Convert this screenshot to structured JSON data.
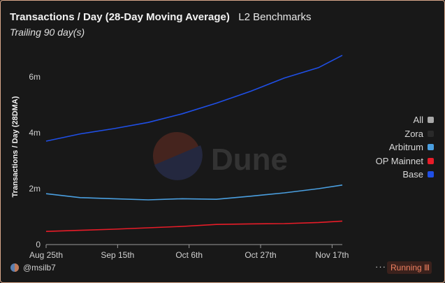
{
  "header": {
    "title": "Transactions / Day (28-Day Moving Average)",
    "tag": "L2 Benchmarks",
    "period": "Trailing 90 day(s)"
  },
  "watermark": {
    "text": "Dune"
  },
  "legend": {
    "items": [
      {
        "label": "All",
        "color": "#a8a8a8"
      },
      {
        "label": "Zora",
        "color": "#2a2a2a"
      },
      {
        "label": "Arbitrum",
        "color": "#4a9fe0"
      },
      {
        "label": "OP Mainnet",
        "color": "#e81c28"
      },
      {
        "label": "Base",
        "color": "#1f4fe6"
      }
    ]
  },
  "footer": {
    "user": "@msilb7",
    "more": "···",
    "status": "Running",
    "status_bars": "III"
  },
  "chart_data": {
    "type": "line",
    "title": "Transactions / Day (28-Day Moving Average)",
    "ylabel": "Transactions / Day (28DMA)",
    "xlabel": "",
    "ylim": [
      0,
      7000000
    ],
    "yticks": [
      0,
      2000000,
      4000000,
      6000000
    ],
    "ytick_labels": [
      "0",
      "2m",
      "4m",
      "6m"
    ],
    "x_range": [
      "2023-08-25",
      "2023-11-20"
    ],
    "xticks": [
      "2023-08-25",
      "2023-09-15",
      "2023-10-06",
      "2023-10-27",
      "2023-11-17"
    ],
    "xtick_labels": [
      "Aug 25th",
      "Sep 15th",
      "Oct 6th",
      "Oct 27th",
      "Nov 17th"
    ],
    "x": [
      "2023-08-25",
      "2023-09-04",
      "2023-09-14",
      "2023-09-24",
      "2023-10-04",
      "2023-10-14",
      "2023-10-24",
      "2023-11-03",
      "2023-11-13",
      "2023-11-20"
    ],
    "series": [
      {
        "name": "Base",
        "color": "#1f4fe6",
        "values": [
          3700000,
          3960000,
          4150000,
          4370000,
          4680000,
          5060000,
          5480000,
          5960000,
          6330000,
          6770000
        ]
      },
      {
        "name": "Arbitrum",
        "color": "#4a9fe0",
        "values": [
          1820000,
          1680000,
          1640000,
          1600000,
          1640000,
          1620000,
          1730000,
          1850000,
          2000000,
          2130000
        ]
      },
      {
        "name": "OP Mainnet",
        "color": "#e81c28",
        "values": [
          470000,
          510000,
          550000,
          600000,
          650000,
          720000,
          740000,
          750000,
          790000,
          840000
        ]
      }
    ],
    "grid": false,
    "legend_position": "right"
  }
}
